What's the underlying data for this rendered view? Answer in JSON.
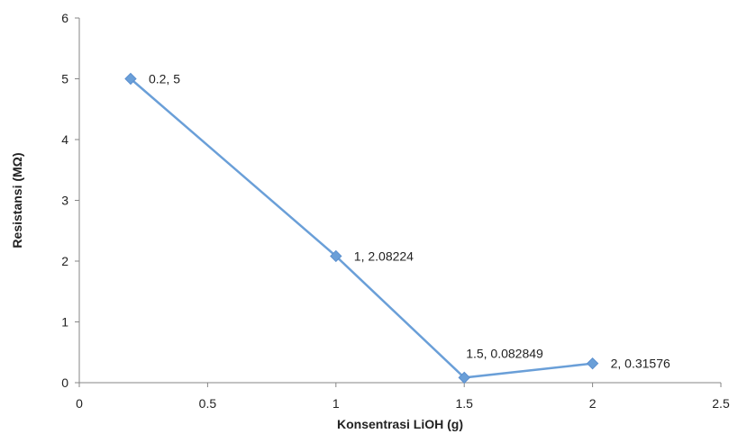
{
  "chart_data": {
    "type": "line",
    "xlabel": "Konsentrasi LiOH (g)",
    "ylabel": "Resistansi (MΩ)",
    "xlim": [
      0,
      2.5
    ],
    "ylim": [
      0,
      6
    ],
    "x_ticks": [
      "0",
      "0.5",
      "1",
      "1.5",
      "2",
      "2.5"
    ],
    "y_ticks": [
      "0",
      "1",
      "2",
      "3",
      "4",
      "5",
      "6"
    ],
    "grid": false,
    "legend": "none",
    "series": [
      {
        "color": "#6a9fd8",
        "points": [
          {
            "x": 0.2,
            "y": 5,
            "label": "0.2, 5"
          },
          {
            "x": 1,
            "y": 2.08224,
            "label": "1, 2.08224"
          },
          {
            "x": 1.5,
            "y": 0.082849,
            "label": "1.5, 0.082849"
          },
          {
            "x": 2,
            "y": 0.31576,
            "label": "2, 0.31576"
          }
        ]
      }
    ]
  }
}
